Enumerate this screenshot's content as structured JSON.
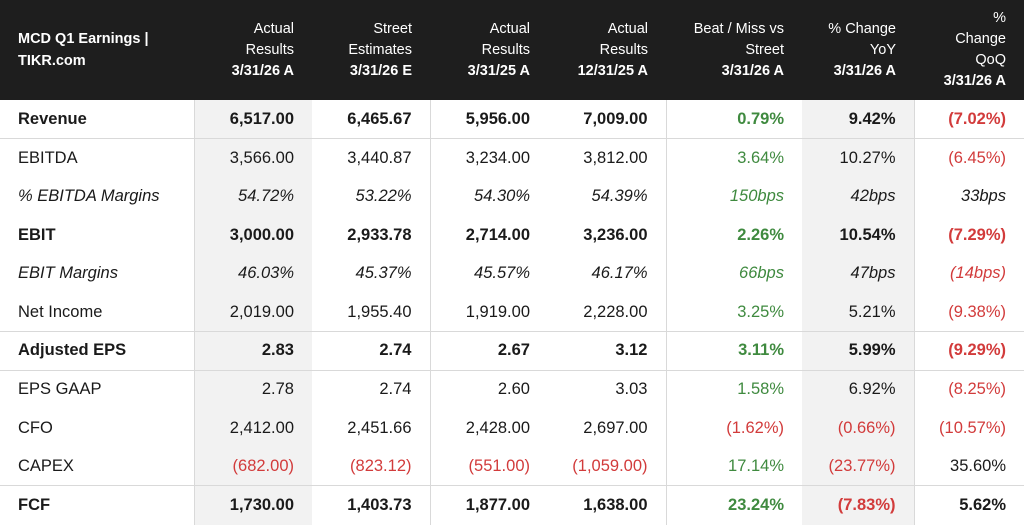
{
  "table": {
    "title_lines": [
      "MCD Q1 Earnings |",
      "TIKR.com"
    ],
    "columns": [
      {
        "lines": [
          "Actual",
          "Results"
        ],
        "date": "3/31/26 A"
      },
      {
        "lines": [
          "Street",
          "Estimates"
        ],
        "date": "3/31/26 E"
      },
      {
        "lines": [
          "Actual",
          "Results"
        ],
        "date": "3/31/25 A"
      },
      {
        "lines": [
          "Actual",
          "Results"
        ],
        "date": "12/31/25 A"
      },
      {
        "lines": [
          "Beat / Miss vs",
          "Street"
        ],
        "date": "3/31/26 A"
      },
      {
        "lines": [
          "% Change",
          "YoY"
        ],
        "date": "3/31/26 A"
      },
      {
        "lines": [
          "%",
          "Change",
          "QoQ"
        ],
        "date": "3/31/26 A"
      }
    ],
    "rows": [
      {
        "metric": "Revenue",
        "values": [
          "6,517.00",
          "6,465.67",
          "5,956.00",
          "7,009.00",
          "0.79%",
          "9.42%",
          "(7.02%)"
        ]
      },
      {
        "metric": "EBITDA",
        "values": [
          "3,566.00",
          "3,440.87",
          "3,234.00",
          "3,812.00",
          "3.64%",
          "10.27%",
          "(6.45%)"
        ]
      },
      {
        "metric": "% EBITDA Margins",
        "values": [
          "54.72%",
          "53.22%",
          "54.30%",
          "54.39%",
          "150bps",
          "42bps",
          "33bps"
        ]
      },
      {
        "metric": "EBIT",
        "values": [
          "3,000.00",
          "2,933.78",
          "2,714.00",
          "3,236.00",
          "2.26%",
          "10.54%",
          "(7.29%)"
        ]
      },
      {
        "metric": "EBIT Margins",
        "values": [
          "46.03%",
          "45.37%",
          "45.57%",
          "46.17%",
          "66bps",
          "47bps",
          "(14bps)"
        ]
      },
      {
        "metric": "Net Income",
        "values": [
          "2,019.00",
          "1,955.40",
          "1,919.00",
          "2,228.00",
          "3.25%",
          "5.21%",
          "(9.38%)"
        ]
      },
      {
        "metric": "Adjusted EPS",
        "values": [
          "2.83",
          "2.74",
          "2.67",
          "3.12",
          "3.11%",
          "5.99%",
          "(9.29%)"
        ]
      },
      {
        "metric": "EPS GAAP",
        "values": [
          "2.78",
          "2.74",
          "2.60",
          "3.03",
          "1.58%",
          "6.92%",
          "(8.25%)"
        ]
      },
      {
        "metric": "CFO",
        "values": [
          "2,412.00",
          "2,451.66",
          "2,428.00",
          "2,697.00",
          "(1.62%)",
          "(0.66%)",
          "(10.57%)"
        ]
      },
      {
        "metric": "CAPEX",
        "values": [
          "(682.00)",
          "(823.12)",
          "(551.00)",
          "(1,059.00)",
          "17.14%",
          "(23.77%)",
          "35.60%"
        ]
      },
      {
        "metric": "FCF",
        "values": [
          "1,730.00",
          "1,403.73",
          "1,877.00",
          "1,638.00",
          "23.24%",
          "(7.83%)",
          "5.62%"
        ]
      }
    ]
  },
  "colors": {
    "header_bg": "#1e1e1e",
    "positive": "#3f8a3f",
    "negative": "#d23b3b",
    "shade": "#f2f2f2"
  }
}
